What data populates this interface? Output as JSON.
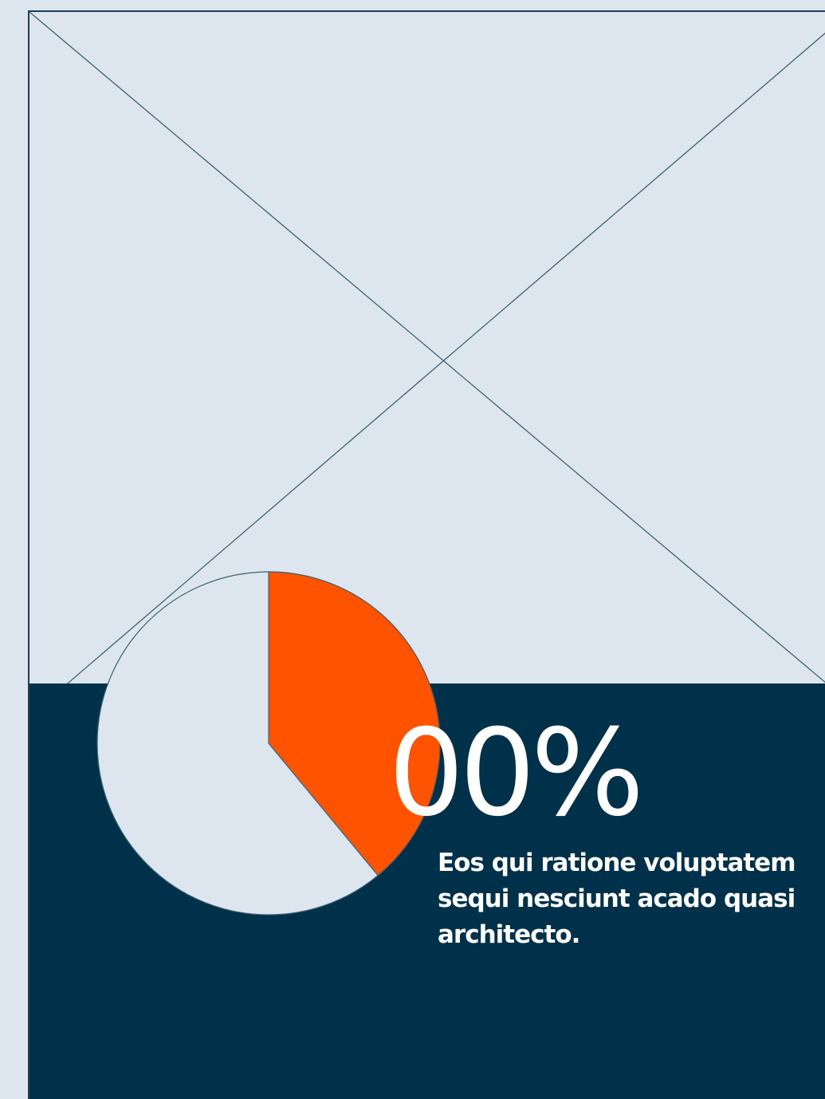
{
  "stat": {
    "value_label": "00%",
    "description": "Eos qui ratione voluptatem sequi nesciunt acado quasi architecto."
  },
  "pie": {
    "highlight_fraction": 0.39,
    "highlight_color": "#ff5300",
    "base_color": "#dde5ee"
  },
  "colors": {
    "background": "#dde5ee",
    "panel": "#00314b",
    "line": "#3d6273",
    "text_on_dark": "#ffffff"
  },
  "image_placeholder": {
    "icon": "crossed-box-image-placeholder-icon"
  }
}
